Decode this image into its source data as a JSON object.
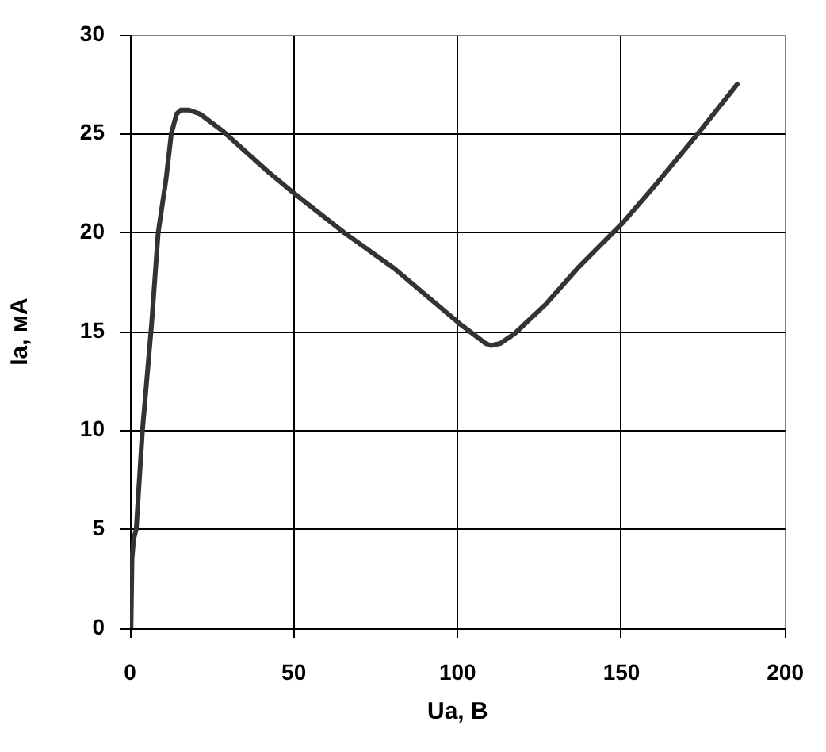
{
  "chart_data": {
    "type": "line",
    "xlabel": "Ua, В",
    "ylabel": "Ia, мА",
    "x": [
      0.3,
      0.6,
      1.1,
      1.9,
      3.8,
      6.6,
      8.6,
      11,
      12.6,
      14.2,
      15.5,
      18,
      21.4,
      28.6,
      42,
      50,
      65.4,
      80.6,
      100.6,
      104.6,
      108.5,
      110.2,
      113,
      117.4,
      127,
      136.6,
      150.4,
      160.3,
      173.3,
      185.3
    ],
    "values": [
      0,
      3.5,
      4.5,
      5,
      10,
      15.4,
      20,
      22.7,
      25,
      26,
      26.2,
      26.2,
      26,
      25.1,
      23.1,
      22,
      20,
      18.2,
      15.4,
      14.9,
      14.4,
      14.3,
      14.4,
      14.9,
      16.4,
      18.2,
      20.5,
      22.4,
      25,
      27.5
    ],
    "color": "#333333",
    "xlim": [
      0,
      200
    ],
    "ylim": [
      0,
      30
    ],
    "xticks": [
      0,
      50,
      100,
      150,
      200
    ],
    "yticks": [
      0,
      5,
      10,
      15,
      20,
      25,
      30
    ],
    "grid": true
  }
}
